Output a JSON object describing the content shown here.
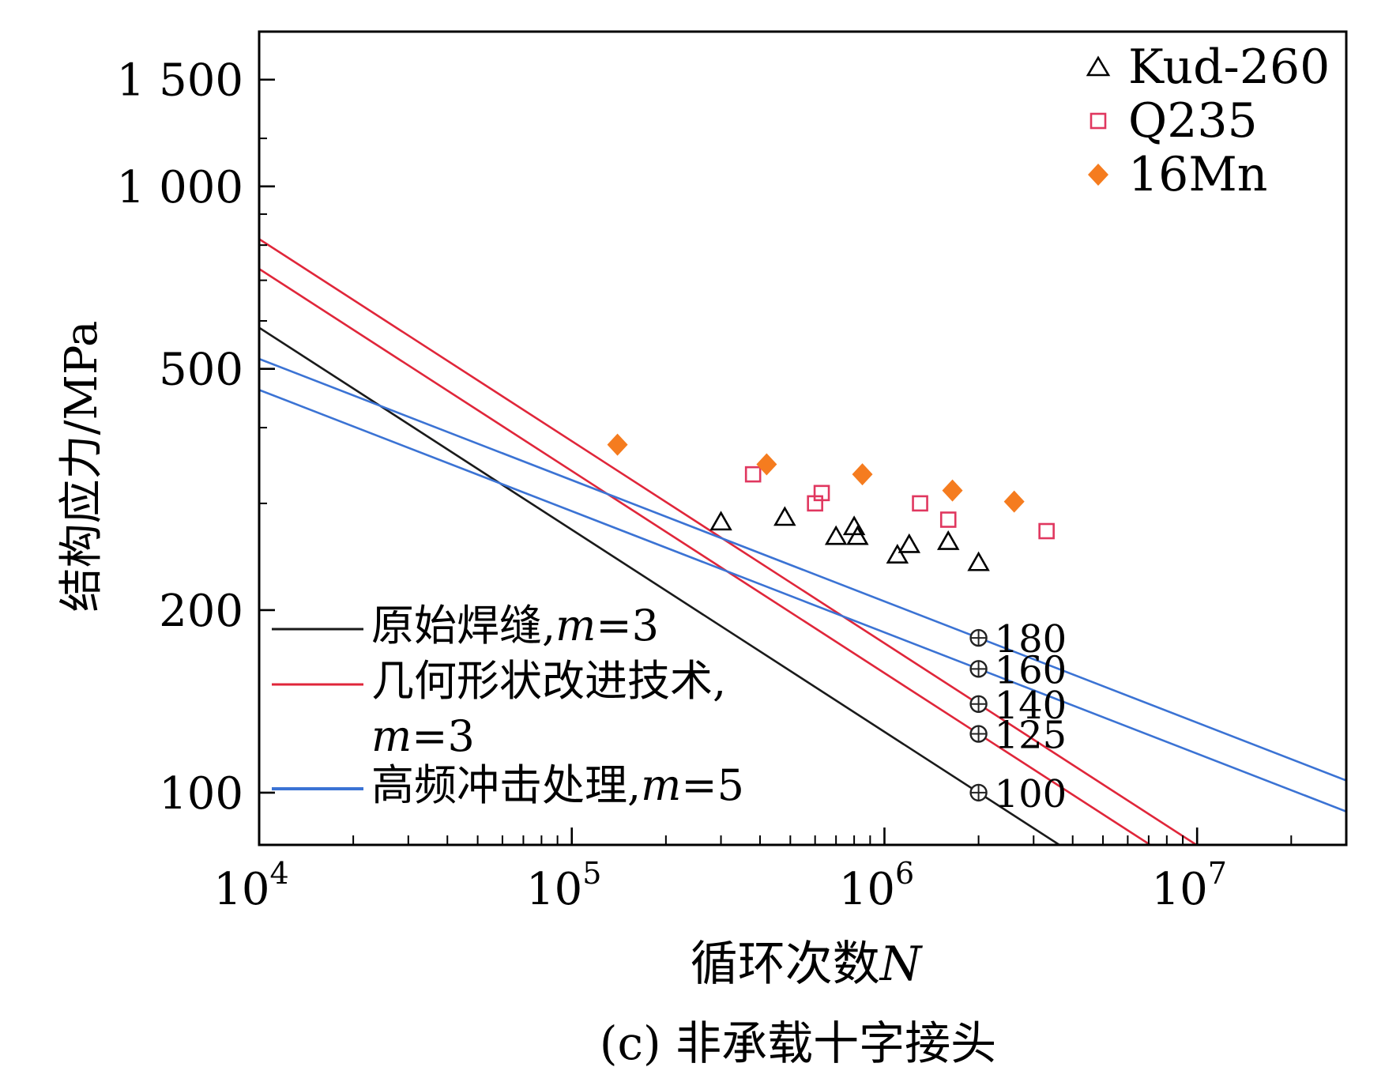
{
  "chart_data": {
    "type": "scatter",
    "title": "(c) 非承载十字接头",
    "xlabel_main": "循环次数",
    "xlabel_var": "N",
    "ylabel": "结构应力/MPa",
    "x_scale": "log",
    "y_scale": "log",
    "xlim": [
      10000,
      30000000
    ],
    "ylim": [
      82,
      1800
    ],
    "x_ticks": [
      {
        "value": 10000,
        "base": "10",
        "exp": "4"
      },
      {
        "value": 100000,
        "base": "10",
        "exp": "5"
      },
      {
        "value": 1000000,
        "base": "10",
        "exp": "6"
      },
      {
        "value": 10000000,
        "base": "10",
        "exp": "7"
      }
    ],
    "y_ticks": [
      {
        "value": 1500,
        "label": "1 500"
      },
      {
        "value": 1000,
        "label": "1 000"
      },
      {
        "value": 500,
        "label": "500"
      },
      {
        "value": 200,
        "label": "200"
      },
      {
        "value": 100,
        "label": "100"
      }
    ],
    "grid": false,
    "scatter_series": [
      {
        "name": "Kud-260",
        "marker": "triangle",
        "color": "#000000",
        "points": [
          [
            300000,
            280
          ],
          [
            480000,
            285
          ],
          [
            700000,
            265
          ],
          [
            800000,
            275
          ],
          [
            820000,
            265
          ],
          [
            1100000,
            247
          ],
          [
            1200000,
            257
          ],
          [
            1600000,
            260
          ],
          [
            2000000,
            240
          ]
        ]
      },
      {
        "name": "Q235",
        "marker": "square",
        "color": "#e0375f",
        "points": [
          [
            380000,
            335
          ],
          [
            600000,
            300
          ],
          [
            630000,
            312
          ],
          [
            1300000,
            300
          ],
          [
            1600000,
            282
          ],
          [
            3300000,
            270
          ]
        ]
      },
      {
        "name": "16Mn",
        "marker": "diamond",
        "color": "#f57c1f",
        "points": [
          [
            140000,
            375
          ],
          [
            420000,
            348
          ],
          [
            850000,
            335
          ],
          [
            1650000,
            315
          ],
          [
            2600000,
            302
          ]
        ]
      }
    ],
    "line_series": [
      {
        "group": "原始焊缝",
        "color": "#1a1a1a",
        "slope_m": 3,
        "stress_at_2e6": 100
      },
      {
        "group": "几何形状改进技术",
        "color": "#e0263a",
        "slope_m": 3,
        "stress_at_2e6": 125
      },
      {
        "group": "几何形状改进技术",
        "color": "#e0263a",
        "slope_m": 3,
        "stress_at_2e6": 140
      },
      {
        "group": "高频冲击处理",
        "color": "#3b73d4",
        "slope_m": 5,
        "stress_at_2e6": 160
      },
      {
        "group": "高频冲击处理",
        "color": "#3b73d4",
        "slope_m": 5,
        "stress_at_2e6": 180
      }
    ],
    "fat_markers": [
      {
        "n": 2000000,
        "value": 180,
        "label": "180"
      },
      {
        "n": 2000000,
        "value": 160,
        "label": "160"
      },
      {
        "n": 2000000,
        "value": 140,
        "label": "140"
      },
      {
        "n": 2000000,
        "value": 125,
        "label": "125"
      },
      {
        "n": 2000000,
        "value": 100,
        "label": "100"
      }
    ],
    "legend_lines": [
      {
        "text": "原始焊缝,",
        "var": "m",
        "suffix": "=3",
        "color": "#1a1a1a"
      },
      {
        "text": "几何形状改进技术,",
        "var": "",
        "suffix": "",
        "color": "#e0263a"
      },
      {
        "text": "",
        "var": "m",
        "suffix": "=3",
        "color": ""
      },
      {
        "text": "高频冲击处理,",
        "var": "m",
        "suffix": "=5",
        "color": "#3b73d4"
      }
    ],
    "legend_markers_placement": "top-right",
    "legend_lines_placement": "bottom-left"
  }
}
